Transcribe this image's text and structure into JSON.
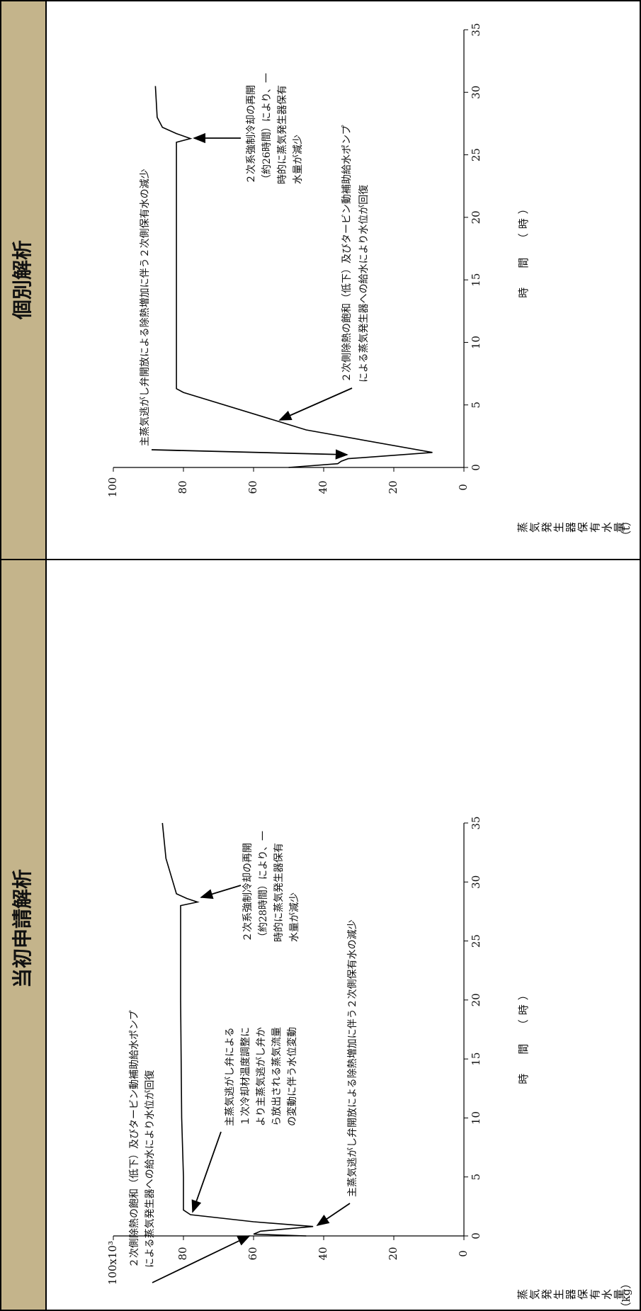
{
  "chart_data": [
    {
      "type": "line",
      "title": "当初申請解析",
      "x": [
        0,
        0.15,
        0.4,
        0.8,
        1.2,
        1.8,
        2.2,
        5,
        10,
        20,
        28,
        28.3,
        28.6,
        29,
        32,
        35
      ],
      "series": [
        {
          "color": "#000000",
          "values": [
            45,
            60,
            58,
            43,
            60,
            78,
            80,
            80,
            80.5,
            80.8,
            80.8,
            76,
            79,
            82,
            85,
            86
          ]
        }
      ],
      "xlim": [
        0,
        35
      ],
      "xticks": [
        0,
        5,
        10,
        15,
        20,
        25,
        30,
        35
      ],
      "ylim": [
        0,
        100
      ],
      "yticks": [
        0,
        20,
        40,
        60,
        80,
        {
          "value": 100,
          "label": "100x10³"
        }
      ],
      "xlabel": "時　間　（時）",
      "ylabel": "蒸気発生器保有水量",
      "yunit": "（kg）",
      "annotations": [
        {
          "lines": [
            "２次側除熱の飽和（低下）及びタービン動補助給水ポンプ",
            "による蒸気発生器への給水により水位が回復"
          ]
        },
        {
          "lines": [
            "主蒸気逃がし弁による",
            "１次冷却材温度調整に",
            "より主蒸気逃がし弁か",
            "ら放出される蒸気流量",
            "の変動に伴う水位変動"
          ]
        },
        {
          "lines": [
            "主蒸気逃がし弁開放による除熱増加に伴う２次側保有水の減少"
          ]
        },
        {
          "lines": [
            "２次系強制冷却の再開",
            "（約28時間）により、一",
            "時的に蒸気発生器保有",
            "水量が減少"
          ]
        }
      ]
    },
    {
      "type": "line",
      "title": "個別解析",
      "x": [
        0,
        0.3,
        0.5,
        0.7,
        1.2,
        3,
        6,
        6.3,
        10,
        20,
        26,
        26.3,
        26.7,
        27.2,
        28,
        30.5
      ],
      "series": [
        {
          "color": "#000000",
          "values": [
            50,
            36,
            35,
            33,
            9,
            45,
            80,
            82,
            82,
            82,
            82,
            78,
            82,
            86,
            87.5,
            88
          ]
        }
      ],
      "xlim": [
        0,
        35
      ],
      "xticks": [
        0,
        5,
        10,
        15,
        20,
        25,
        30,
        35
      ],
      "ylim": [
        0,
        100
      ],
      "yticks": [
        0,
        20,
        40,
        60,
        80,
        100
      ],
      "xlabel": "時　間　（時）",
      "ylabel": "蒸気発生器保有水量",
      "yunit": "（t）",
      "annotations": [
        {
          "lines": [
            "主蒸気逃がし弁開放による除熱増加に伴う２次側保有水の減少"
          ]
        },
        {
          "lines": [
            "２次側除熱の飽和（低下）及びタービン動補助給水ポンプ",
            "による蒸気発生器への給水により水位が回復"
          ]
        },
        {
          "lines": [
            "２次系強制冷却の再開",
            "（約26時間）により、一",
            "時的に蒸気発生器保有",
            "水量が減少"
          ]
        }
      ]
    }
  ]
}
